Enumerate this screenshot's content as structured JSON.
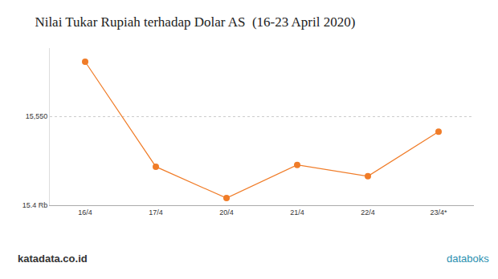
{
  "chart_data": {
    "type": "line",
    "title": "Nilai Tukar Rupiah terhadap Dolar AS  (16-23 April 2020)",
    "categories": [
      "16/4",
      "17/4",
      "20/4",
      "21/4",
      "22/4",
      "23/4*"
    ],
    "values": [
      15642,
      15465,
      15412,
      15468,
      15449,
      15524
    ],
    "color": "#f07c28",
    "marker": "circle",
    "ylim": [
      15400,
      15665
    ],
    "yticks": [
      {
        "value": 15400,
        "label": "15.4 Rb"
      },
      {
        "value": 15550,
        "label": "15,550"
      }
    ],
    "grid": true,
    "annotations": [
      "katadata.co.id",
      "databoks"
    ]
  }
}
